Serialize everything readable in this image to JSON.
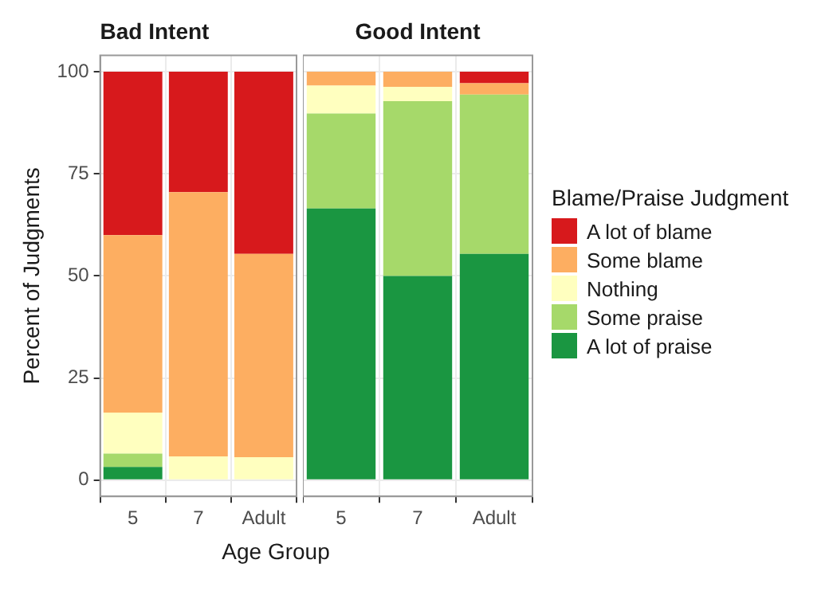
{
  "chart_data": [
    {
      "type": "bar",
      "title": "Bad Intent",
      "ylabel": "Percent of Judgments",
      "xlabel": "Age Group",
      "categories": [
        "5",
        "7",
        "Adult"
      ],
      "stacked": true,
      "ylim": [
        -4,
        104
      ],
      "yticks": [
        0,
        25,
        50,
        75,
        100
      ],
      "grid": true,
      "series": [
        {
          "color": "#1a9641",
          "values": [
            3.2,
            0,
            0
          ]
        },
        {
          "color": "#a6d96a",
          "values": [
            3.3,
            0,
            0
          ]
        },
        {
          "color": "#ffffbf",
          "values": [
            10,
            5.8,
            5.6
          ]
        },
        {
          "color": "#fdae61",
          "values": [
            43.5,
            64.7,
            49.8
          ]
        },
        {
          "color": "#d7191c",
          "values": [
            40,
            29.5,
            44.6
          ]
        }
      ]
    },
    {
      "type": "bar",
      "title": "Good Intent",
      "categories": [
        "5",
        "7",
        "Adult"
      ],
      "stacked": true,
      "ylim": [
        -4,
        104
      ],
      "yticks": [
        0,
        25,
        50,
        75,
        100
      ],
      "grid": true,
      "tick_labels": "x",
      "legend": "right",
      "legend_title": "Blame/Praise Judgment",
      "series": [
        {
          "name": "A lot of praise",
          "color": "#1a9641",
          "values": [
            66.5,
            50,
            55.4
          ]
        },
        {
          "name": "Some praise",
          "color": "#a6d96a",
          "values": [
            23.3,
            42.8,
            39
          ]
        },
        {
          "name": "Nothing",
          "color": "#ffffbf",
          "values": [
            6.8,
            3.5,
            0
          ]
        },
        {
          "name": "Some blame",
          "color": "#fdae61",
          "values": [
            3.4,
            3.7,
            2.8
          ]
        },
        {
          "name": "A lot of blame",
          "color": "#d7191c",
          "values": [
            0,
            0,
            2.8
          ]
        }
      ]
    }
  ]
}
